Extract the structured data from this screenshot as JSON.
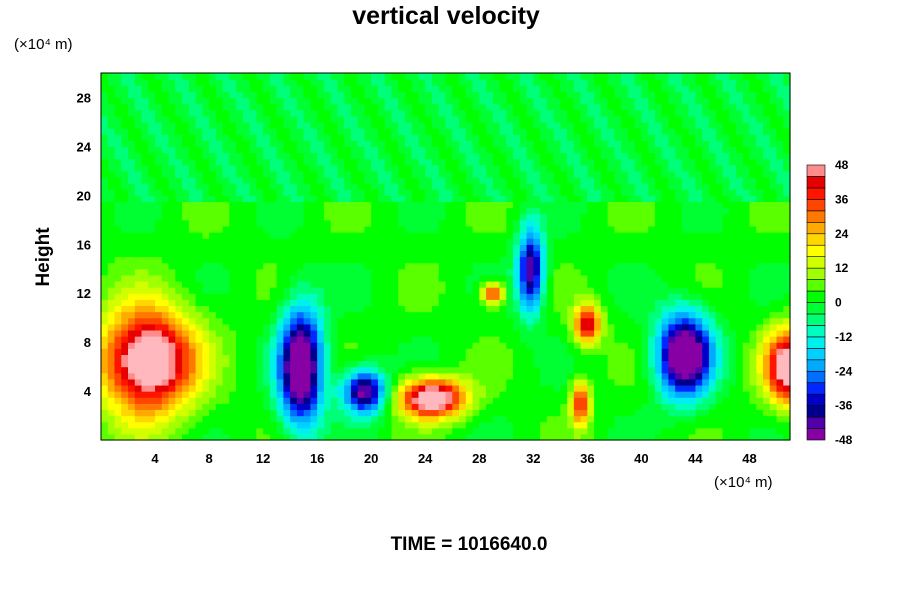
{
  "chart_data": {
    "type": "heatmap",
    "title": "vertical velocity",
    "ylabel": "Height",
    "x_unit_label": "(×10⁴ m)",
    "y_unit_label": "(×10⁴ m)",
    "footer_text": "TIME = 1016640.0",
    "xlim": [
      0,
      51
    ],
    "ylim": [
      0,
      30
    ],
    "x_ticks": [
      "4",
      "8",
      "12",
      "16",
      "20",
      "24",
      "28",
      "32",
      "36",
      "40",
      "44",
      "48"
    ],
    "y_ticks": [
      "4",
      "8",
      "12",
      "16",
      "20",
      "24",
      "28"
    ],
    "colorbar": {
      "min": -48,
      "max": 48,
      "step": 4,
      "labels": [
        "48",
        "36",
        "24",
        "12",
        "0",
        "-12",
        "-24",
        "-36",
        "-48"
      ]
    },
    "features": [
      {
        "kind": "updraft",
        "x": 3.5,
        "y": 6.5,
        "peak": 48
      },
      {
        "kind": "downdraft",
        "x": 14.5,
        "y": 6.5,
        "peak": -48
      },
      {
        "kind": "downdraft",
        "x": 19.5,
        "y": 4,
        "peak": -40
      },
      {
        "kind": "updraft",
        "x": 24.5,
        "y": 3.5,
        "peak": 46
      },
      {
        "kind": "updraft",
        "x": 29,
        "y": 12,
        "peak": 30
      },
      {
        "kind": "downdraft",
        "x": 31.5,
        "y": 14,
        "peak": -36
      },
      {
        "kind": "updraft",
        "x": 36,
        "y": 9.5,
        "peak": 34
      },
      {
        "kind": "updraft",
        "x": 35.5,
        "y": 3,
        "peak": 30
      },
      {
        "kind": "downdraft",
        "x": 43.5,
        "y": 7,
        "peak": -48
      },
      {
        "kind": "updraft",
        "x": 50.5,
        "y": 6,
        "peak": 44
      }
    ]
  }
}
